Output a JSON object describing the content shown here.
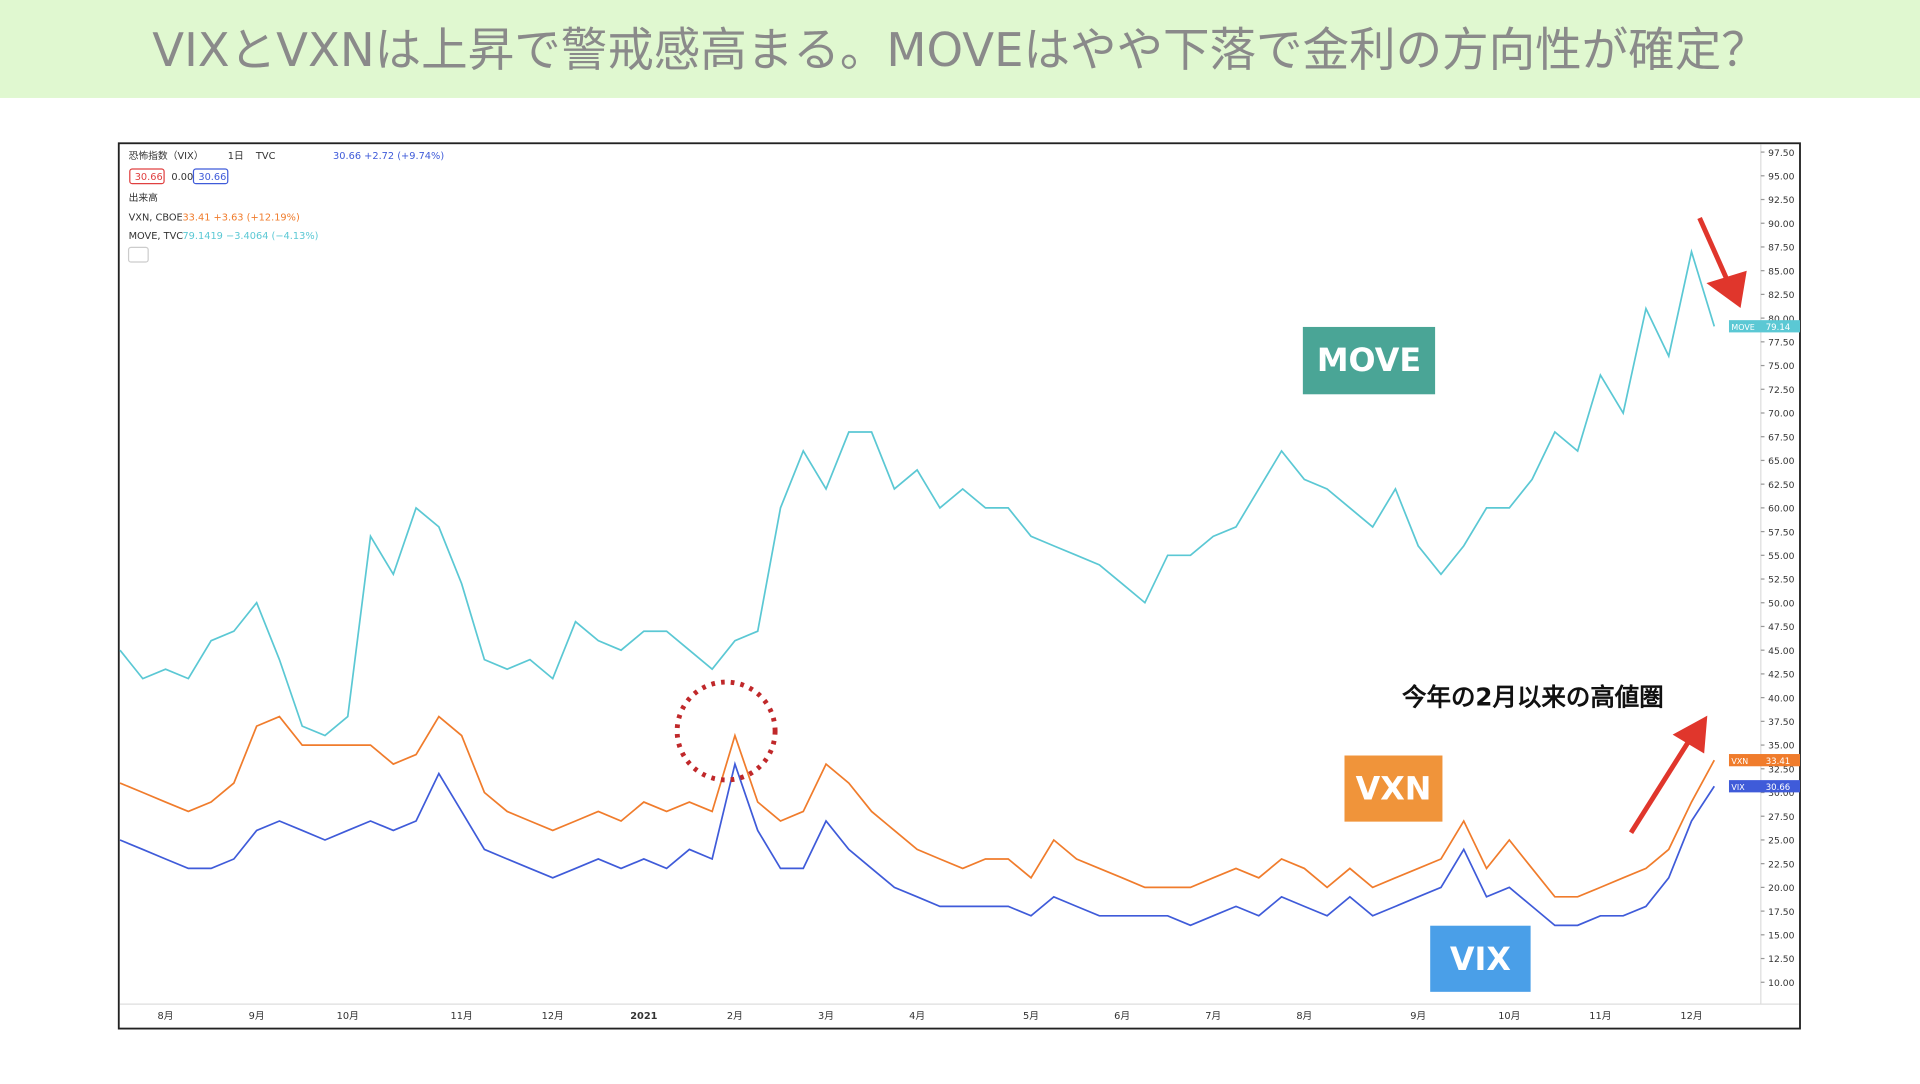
{
  "title": "VIXとVXNは上昇で警戒感高まる。MOVEはやや下落で金利の方向性が確定？",
  "chart_data": {
    "type": "line",
    "info": {
      "symbol": "恐怖指数（VIX）",
      "interval": "1日",
      "source": "TVC",
      "quote": "30.66 +2.72 (+9.74%)",
      "bid": "30.66",
      "spread": "0.00",
      "ask": "30.66",
      "volume": "出来高",
      "vxn_name": "VXN, CBOE",
      "vxn_quote": "33.41 +3.63 (+12.19%)",
      "move_name": "MOVE, TVC",
      "move_quote": "79.1419 −3.4064 (−4.13%)"
    },
    "categories": [
      null,
      null,
      "8月",
      null,
      null,
      null,
      "9月",
      null,
      null,
      null,
      "10月",
      null,
      null,
      null,
      null,
      "11月",
      null,
      null,
      null,
      "12月",
      null,
      null,
      null,
      "2021",
      null,
      null,
      null,
      "2月",
      null,
      null,
      null,
      "3月",
      null,
      null,
      null,
      "4月",
      null,
      null,
      null,
      null,
      "5月",
      null,
      null,
      null,
      "6月",
      null,
      null,
      null,
      "7月",
      null,
      null,
      null,
      "8月",
      null,
      null,
      null,
      null,
      "9月",
      null,
      null,
      null,
      "10月",
      null,
      null,
      null,
      "11月",
      null,
      null,
      null,
      "12月",
      null
    ],
    "series": [
      {
        "name": "MOVE",
        "color": "#5bc8d4",
        "values": [
          45,
          42,
          43,
          42,
          46,
          47,
          50,
          44,
          37,
          36,
          38,
          57,
          53,
          60,
          58,
          52,
          44,
          43,
          44,
          42,
          48,
          46,
          45,
          47,
          47,
          45,
          43,
          46,
          47,
          60,
          66,
          62,
          68,
          68,
          62,
          64,
          60,
          62,
          60,
          60,
          57,
          56,
          55,
          54,
          52,
          50,
          55,
          55,
          57,
          58,
          62,
          66,
          63,
          62,
          60,
          58,
          62,
          56,
          53,
          56,
          60,
          60,
          63,
          68,
          66,
          74,
          70,
          81,
          76,
          87,
          79.14
        ]
      },
      {
        "name": "VXN",
        "color": "#f07c2c",
        "values": [
          31,
          30,
          29,
          28,
          29,
          31,
          37,
          38,
          35,
          35,
          35,
          35,
          33,
          34,
          38,
          36,
          30,
          28,
          27,
          26,
          27,
          28,
          27,
          29,
          28,
          29,
          28,
          36,
          29,
          27,
          28,
          33,
          31,
          28,
          26,
          24,
          23,
          22,
          23,
          23,
          21,
          25,
          23,
          22,
          21,
          20,
          20,
          20,
          21,
          22,
          21,
          23,
          22,
          20,
          22,
          20,
          21,
          22,
          23,
          27,
          22,
          25,
          22,
          19,
          19,
          20,
          21,
          22,
          24,
          29,
          33.41
        ]
      },
      {
        "name": "VIX",
        "color": "#3f5bd9",
        "values": [
          25,
          24,
          23,
          22,
          22,
          23,
          26,
          27,
          26,
          25,
          26,
          27,
          26,
          27,
          32,
          28,
          24,
          23,
          22,
          21,
          22,
          23,
          22,
          23,
          22,
          24,
          23,
          33,
          26,
          22,
          22,
          27,
          24,
          22,
          20,
          19,
          18,
          18,
          18,
          18,
          17,
          19,
          18,
          17,
          17,
          17,
          17,
          16,
          17,
          18,
          17,
          19,
          18,
          17,
          19,
          17,
          18,
          19,
          20,
          24,
          19,
          20,
          18,
          16,
          16,
          17,
          17,
          18,
          21,
          27,
          30.66
        ]
      }
    ],
    "ylim": [
      7.7,
      98.3
    ],
    "yticks": [
      {
        "value": 10,
        "label": "10.00"
      },
      {
        "value": 12.5,
        "label": "12.50"
      },
      {
        "value": 15,
        "label": "15.00"
      },
      {
        "value": 17.5,
        "label": "17.50"
      },
      {
        "value": 20,
        "label": "20.00"
      },
      {
        "value": 22.5,
        "label": "22.50"
      },
      {
        "value": 25,
        "label": "25.00"
      },
      {
        "value": 27.5,
        "label": "27.50"
      },
      {
        "value": 30,
        "label": "30.00"
      },
      {
        "value": 32.5,
        "label": "32.50"
      },
      {
        "value": 35,
        "label": "35.00"
      },
      {
        "value": 37.5,
        "label": "37.50"
      },
      {
        "value": 40,
        "label": "40.00"
      },
      {
        "value": 42.5,
        "label": "42.50"
      },
      {
        "value": 45,
        "label": "45.00"
      },
      {
        "value": 47.5,
        "label": "47.50"
      },
      {
        "value": 50,
        "label": "50.00"
      },
      {
        "value": 52.5,
        "label": "52.50"
      },
      {
        "value": 55,
        "label": "55.00"
      },
      {
        "value": 57.5,
        "label": "57.50"
      },
      {
        "value": 60,
        "label": "60.00"
      },
      {
        "value": 62.5,
        "label": "62.50"
      },
      {
        "value": 65,
        "label": "65.00"
      },
      {
        "value": 67.5,
        "label": "67.50"
      },
      {
        "value": 70,
        "label": "70.00"
      },
      {
        "value": 72.5,
        "label": "72.50"
      },
      {
        "value": 75,
        "label": "75.00"
      },
      {
        "value": 77.5,
        "label": "77.50"
      },
      {
        "value": 80,
        "label": "80.00"
      },
      {
        "value": 82.5,
        "label": "82.50"
      },
      {
        "value": 85,
        "label": "85.00"
      },
      {
        "value": 87.5,
        "label": "87.50"
      },
      {
        "value": 90,
        "label": "90.00"
      },
      {
        "value": 92.5,
        "label": "92.50"
      },
      {
        "value": 95,
        "label": "95.00"
      },
      {
        "value": 97.5,
        "label": "97.50"
      }
    ],
    "annotations": [
      "MOVE",
      "VXN",
      "VIX",
      "今年の2月以来の高値圏"
    ]
  }
}
